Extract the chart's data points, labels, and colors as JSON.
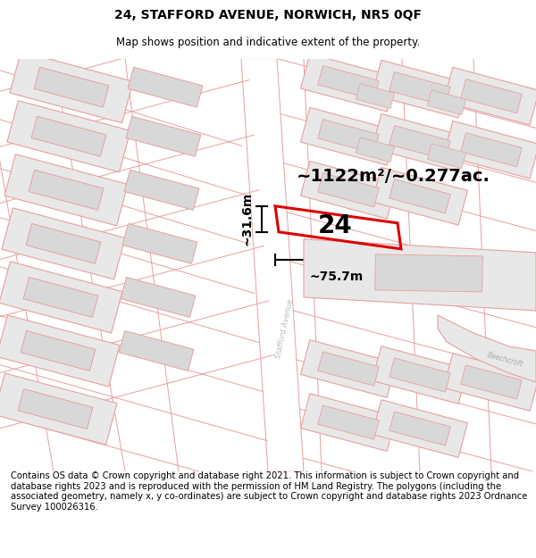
{
  "title": "24, STAFFORD AVENUE, NORWICH, NR5 0QF",
  "subtitle": "Map shows position and indicative extent of the property.",
  "footer": "Contains OS data © Crown copyright and database right 2021. This information is subject to Crown copyright and database rights 2023 and is reproduced with the permission of HM Land Registry. The polygons (including the associated geometry, namely x, y co-ordinates) are subject to Crown copyright and database rights 2023 Ordnance Survey 100026316.",
  "area_label": "~1122m²/~0.277ac.",
  "width_label": "~75.7m",
  "height_label": "~31.6m",
  "number_label": "24",
  "bg_color": "#ffffff",
  "building_fill": "#e8e8e8",
  "pink": "#e8a0a0",
  "red_box_color": "#dd0000",
  "title_fontsize": 10,
  "subtitle_fontsize": 8.5,
  "footer_fontsize": 7.2
}
